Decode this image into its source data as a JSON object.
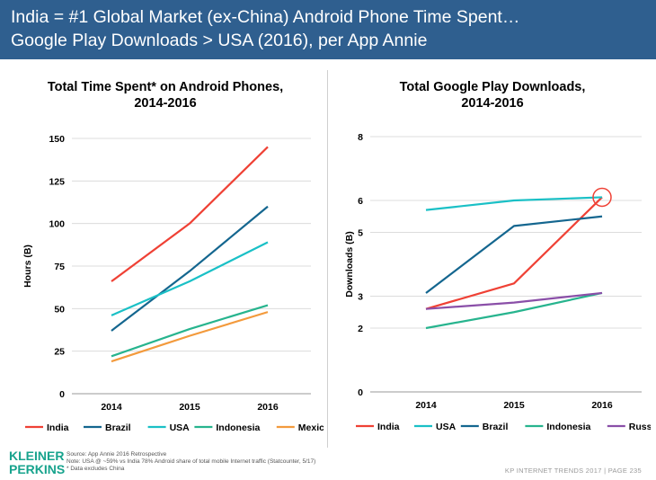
{
  "header": {
    "line1": "India = #1 Global Market (ex-China) Android Phone Time Spent…",
    "line2": "Google Play Downloads > USA (2016), per App Annie"
  },
  "chart_data": [
    {
      "type": "line",
      "title": "Total Time Spent* on Android Phones,",
      "title2": "2014-2016",
      "ylabel": "Hours (B)",
      "xlabel": "",
      "x": [
        "2014",
        "2015",
        "2016"
      ],
      "ylim": [
        0,
        150
      ],
      "yticks": [
        0,
        25,
        50,
        75,
        100,
        125,
        150
      ],
      "grid": true,
      "legend": "bottom",
      "series": [
        {
          "name": "India",
          "color": "#ef4135",
          "values": [
            66,
            100,
            145
          ]
        },
        {
          "name": "Brazil",
          "color": "#14668f",
          "values": [
            37,
            72,
            110
          ]
        },
        {
          "name": "USA",
          "color": "#1ac0c6",
          "values": [
            46,
            66,
            89
          ]
        },
        {
          "name": "Indonesia",
          "color": "#27b48e",
          "values": [
            22,
            38,
            52
          ]
        },
        {
          "name": "Mexico",
          "color": "#f39a3c",
          "values": [
            19,
            34,
            48
          ]
        }
      ]
    },
    {
      "type": "line",
      "title": "Total Google Play Downloads,",
      "title2": "2014-2016",
      "ylabel": "Downloads (B)",
      "xlabel": "",
      "x": [
        "2014",
        "2015",
        "2016"
      ],
      "ylim": [
        0,
        8
      ],
      "yticks": [
        0,
        2,
        3,
        5,
        6,
        8
      ],
      "grid": true,
      "legend": "bottom",
      "annotation": "circle around India 2016",
      "series": [
        {
          "name": "India",
          "color": "#ef4135",
          "values": [
            2.6,
            3.4,
            6.1
          ]
        },
        {
          "name": "USA",
          "color": "#1ac0c6",
          "values": [
            5.7,
            6.0,
            6.1
          ]
        },
        {
          "name": "Brazil",
          "color": "#14668f",
          "values": [
            3.1,
            5.2,
            5.5
          ]
        },
        {
          "name": "Indonesia",
          "color": "#27b48e",
          "values": [
            2.0,
            2.5,
            3.1
          ]
        },
        {
          "name": "Russia",
          "color": "#8a4fa8",
          "values": [
            2.6,
            2.8,
            3.1
          ]
        }
      ]
    }
  ],
  "footer": {
    "logo_line1": "KLEINER",
    "logo_line2": "PERKINS",
    "note1": "Source: App Annie 2016 Retrospective",
    "note2": "Note: USA @ ~59% vs India 78% Android share of total mobile Internet traffic (Statcounter, 5/17)",
    "note3": "* Data excludes China",
    "right": "KP INTERNET TRENDS 2017  |  PAGE 235"
  }
}
